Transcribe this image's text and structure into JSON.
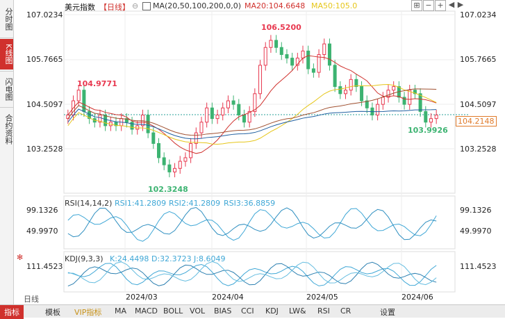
{
  "side_tabs": [
    {
      "label": "分时图",
      "active": false
    },
    {
      "label": "K线图",
      "active": true
    },
    {
      "label": "闪电图",
      "active": false
    },
    {
      "label": "合约资料",
      "active": false
    }
  ],
  "header": {
    "title": "美元指数",
    "period": "【日线】",
    "toggle_icon": "⊖",
    "ma_label": "MA(20,50,100,200,0,0)",
    "ma20": "MA20:104.6648",
    "ma50": "MA50:105.0"
  },
  "toolbar_icons": [
    "expand-icon",
    "minus-icon",
    "plus-icon",
    "left-icon",
    "right-icon"
  ],
  "price_axis": [
    "107.0234",
    "105.7665",
    "104.5097",
    "103.2528"
  ],
  "last_price": "104.2148",
  "price_annotations": {
    "high": "106.5200",
    "low": "102.3248",
    "local_high": "104.9771",
    "recent_low": "103.9926"
  },
  "rsi": {
    "label": "RSI(14,14,2)",
    "v1": "RSI1:41.2809",
    "v2": "RSI2:41.2809",
    "v3": "RSI3:36.8859",
    "axis": [
      "99.1326",
      "49.9970"
    ]
  },
  "kdj": {
    "label": "KDJ(9,3,3)",
    "k": "K:24.4498",
    "d": "D:32.3723",
    "j": "J:8.6049",
    "axis": [
      "111.4523"
    ]
  },
  "dates": [
    "2024/03",
    "2024/04",
    "2024/05",
    "2024/06"
  ],
  "period_button": "日线",
  "bottom_tabs": [
    "指标",
    "模板",
    "VIP指标",
    "MA",
    "MACD",
    "BOLL",
    "VOL",
    "BIAS",
    "CCI",
    "KDJ",
    "LW&",
    "RSI",
    "CR",
    "设置"
  ],
  "colors": {
    "up": "#e8384f",
    "down": "#3cb371",
    "ma20": "#d0312d",
    "ma50": "#e6c619",
    "ma100": "#a05030",
    "ma200": "#1f5fa0"
  }
}
